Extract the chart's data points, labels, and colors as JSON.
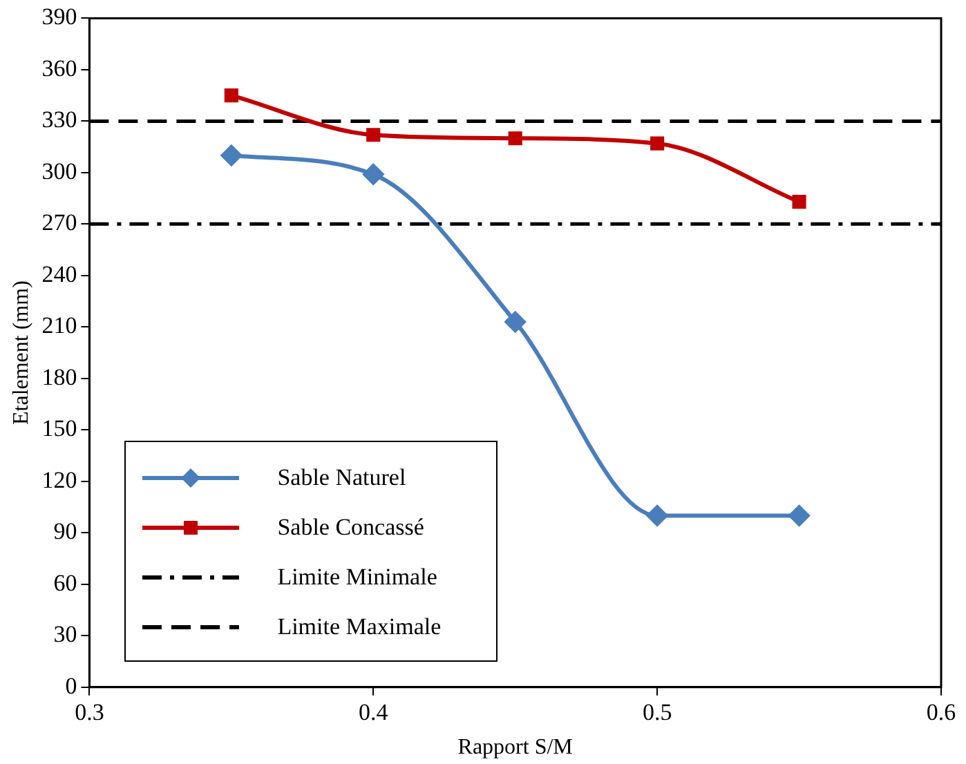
{
  "chart_data": {
    "type": "line",
    "xlabel": "Rapport S/M",
    "ylabel": "Etalement (mm)",
    "x": [
      0.35,
      0.4,
      0.45,
      0.5,
      0.55
    ],
    "series": [
      {
        "name": "Sable Naturel",
        "color": "#4a7ebb",
        "marker": "diamond",
        "values": [
          310,
          299,
          213,
          100,
          100
        ]
      },
      {
        "name": "Sable Concassé",
        "color": "#c00000",
        "marker": "square",
        "values": [
          345,
          322,
          320,
          317,
          283
        ]
      }
    ],
    "ref_lines": [
      {
        "axis": "y",
        "value": 270,
        "label": "Limite Minimale",
        "color": "#000000",
        "line_style": "dashdot"
      },
      {
        "axis": "y",
        "value": 330,
        "label": "Limite Maximale",
        "color": "#000000",
        "line_style": "dashed"
      }
    ],
    "xlim": [
      0.3,
      0.6
    ],
    "xticks": [
      0.3,
      0.4,
      0.5,
      0.6
    ],
    "ylim": [
      0,
      390
    ],
    "yticks": [
      0,
      30,
      60,
      90,
      120,
      150,
      180,
      210,
      240,
      270,
      300,
      330,
      360,
      390
    ],
    "grid": false,
    "legend": "bottom left"
  }
}
